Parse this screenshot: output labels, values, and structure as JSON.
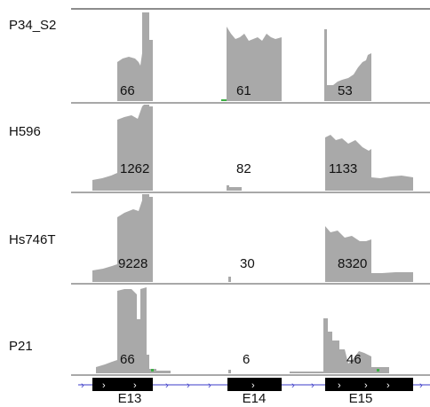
{
  "tracks": [
    {
      "name": "P34_S2",
      "counts": [
        "66",
        "61",
        "53"
      ]
    },
    {
      "name": "H596",
      "counts": [
        "1262",
        "82",
        "1133"
      ]
    },
    {
      "name": "Hs746T",
      "counts": [
        "9228",
        "30",
        "8320"
      ]
    },
    {
      "name": "P21",
      "counts": [
        "66",
        "6",
        "46"
      ]
    }
  ],
  "exons": [
    "E13",
    "E14",
    "E15"
  ],
  "colors": {
    "coverage": "#a9a9a9",
    "separator": "#8c8c8c",
    "gene": "#000000",
    "intron": "#3b3bc8",
    "mismatch": "#3cb043"
  }
}
